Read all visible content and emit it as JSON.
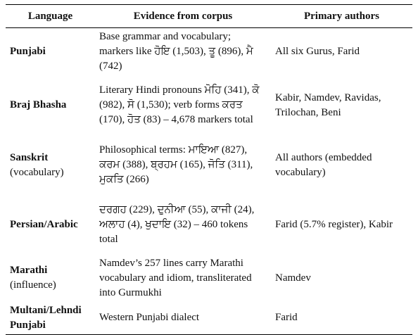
{
  "table": {
    "header": [
      "Language",
      "Evidence from corpus",
      "Primary authors"
    ],
    "rows": [
      {
        "language": "Punjabi",
        "evidence": "Base grammar and vocabulary; markers like ਹੋਇ (1,503), ਤੂ (896), ਮੈ (742)",
        "authors": "All six Gurus, Farid"
      },
      {
        "language": "Braj Bhasha",
        "evidence": "Literary Hindi pronouns ਮੋਹਿ (341), ਕੋ (982), ਸੋ (1,530); verb forms ਕਰਤ (170), ਹੋਤ (83) – 4,678 markers total",
        "authors": "Kabir, Namdev, Ravidas, Trilochan, Beni"
      },
      {
        "language": "Sanskrit",
        "note": "(vocabulary)",
        "evidence": "Philosophical terms: ਮਾਇਆ (827), ਕਰਮ (388), ਬ੍ਰਹਮ (165), ਜੋਤਿ (311), ਮੁਕਤਿ (266)",
        "authors": "All authors (embedded vocabulary)"
      },
      {
        "language": "Persian/Arabic",
        "evidence": "ਦਰਗਹ (229), ਦੁਨੀਆ (55), ਕਾਜੀ (24), ਅਲਾਹ (4), ਖੁਦਾਇ (32) – 460 tokens total",
        "authors": "Farid (5.7% register), Kabir"
      },
      {
        "language": "Marathi",
        "note": "(influence)",
        "evidence": "Namdev’s 257 lines carry Marathi vocabulary and idiom, transliterated into Gurmukhi",
        "authors": "Namdev"
      },
      {
        "language": "Multani/Lehndi Punjabi",
        "evidence": "Western Punjabi dialect",
        "authors": "Farid"
      }
    ]
  }
}
